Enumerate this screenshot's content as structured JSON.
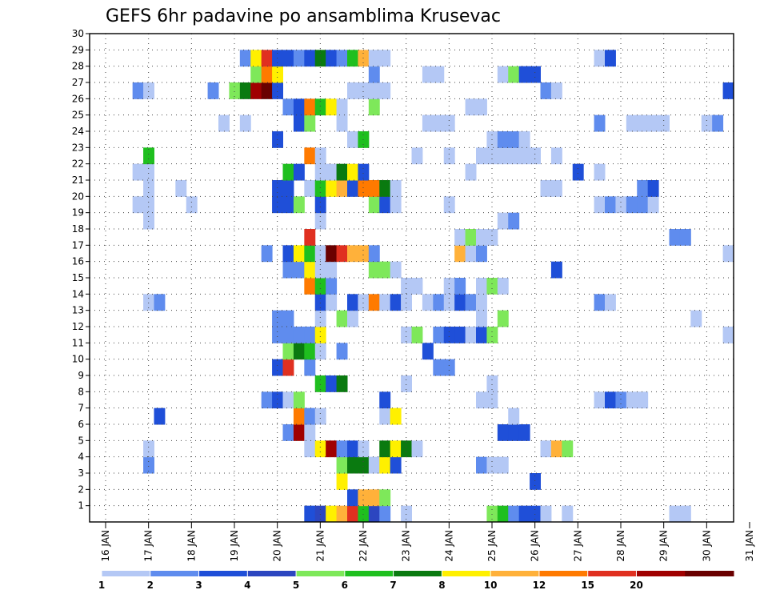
{
  "chart_data": {
    "type": "heatmap",
    "title": "GEFS 6hr padavine po ansamblima Krusevac",
    "x_tick_labels": [
      "16 JAN",
      "17 JAN",
      "18 JAN",
      "19 JAN",
      "20 JAN",
      "21 JAN",
      "22 JAN",
      "23 JAN",
      "24 JAN",
      "25 JAN",
      "26 JAN",
      "27 JAN",
      "28 JAN",
      "29 JAN",
      "30 JAN",
      "31 JAN"
    ],
    "y_tick_labels": [
      "1",
      "2",
      "3",
      "4",
      "5",
      "6",
      "7",
      "8",
      "9",
      "10",
      "11",
      "12",
      "13",
      "14",
      "15",
      "16",
      "17",
      "18",
      "19",
      "20",
      "21",
      "22",
      "23",
      "24",
      "25",
      "26",
      "27",
      "28",
      "29",
      "30"
    ],
    "x_range_6h_steps": [
      0,
      60
    ],
    "y_range_members": [
      0,
      30
    ],
    "grid": true,
    "legend": {
      "position": "bottom",
      "labels": [
        "1",
        "2",
        "3",
        "4",
        "5",
        "6",
        "7",
        "8",
        "10",
        "12",
        "15",
        "20"
      ],
      "colors": [
        "#b4c8f5",
        "#5f8cee",
        "#1f4fd8",
        "#2c46c0",
        "#7ee85a",
        "#1fbf1f",
        "#0a7a10",
        "#fff000",
        "#ffb13a",
        "#ff7a00",
        "#e03020",
        "#a00000",
        "#6a0000"
      ]
    },
    "cells": [
      [
        20,
        1,
        3
      ],
      [
        21,
        1,
        4
      ],
      [
        22,
        1,
        8
      ],
      [
        23,
        1,
        9
      ],
      [
        24,
        1,
        11
      ],
      [
        25,
        1,
        6
      ],
      [
        26,
        1,
        4
      ],
      [
        27,
        1,
        2
      ],
      [
        29,
        1,
        1
      ],
      [
        37,
        1,
        5
      ],
      [
        38,
        1,
        6
      ],
      [
        39,
        1,
        2
      ],
      [
        40,
        1,
        3
      ],
      [
        41,
        1,
        3
      ],
      [
        42,
        1,
        1
      ],
      [
        44,
        1,
        1
      ],
      [
        54,
        1,
        1
      ],
      [
        55,
        1,
        1
      ],
      [
        24,
        2,
        3
      ],
      [
        25,
        2,
        9
      ],
      [
        26,
        2,
        9
      ],
      [
        27,
        2,
        5
      ],
      [
        23,
        3,
        8
      ],
      [
        41,
        3,
        3
      ],
      [
        5,
        4,
        2
      ],
      [
        23,
        4,
        5
      ],
      [
        24,
        4,
        7
      ],
      [
        25,
        4,
        7
      ],
      [
        26,
        4,
        1
      ],
      [
        27,
        4,
        8
      ],
      [
        28,
        4,
        3
      ],
      [
        36,
        4,
        2
      ],
      [
        37,
        4,
        1
      ],
      [
        38,
        4,
        1
      ],
      [
        5,
        5,
        1
      ],
      [
        20,
        5,
        1
      ],
      [
        21,
        5,
        8
      ],
      [
        22,
        5,
        12
      ],
      [
        23,
        5,
        2
      ],
      [
        24,
        5,
        3
      ],
      [
        25,
        5,
        1
      ],
      [
        27,
        5,
        7
      ],
      [
        28,
        5,
        8
      ],
      [
        29,
        5,
        7
      ],
      [
        30,
        5,
        1
      ],
      [
        42,
        5,
        1
      ],
      [
        43,
        5,
        9
      ],
      [
        44,
        5,
        5
      ],
      [
        18,
        6,
        2
      ],
      [
        19,
        6,
        12
      ],
      [
        20,
        6,
        1
      ],
      [
        38,
        6,
        3
      ],
      [
        39,
        6,
        3
      ],
      [
        40,
        6,
        3
      ],
      [
        6,
        7,
        3
      ],
      [
        19,
        7,
        10
      ],
      [
        20,
        7,
        2
      ],
      [
        21,
        7,
        1
      ],
      [
        27,
        7,
        1
      ],
      [
        28,
        7,
        8
      ],
      [
        39,
        7,
        1
      ],
      [
        16,
        8,
        2
      ],
      [
        17,
        8,
        3
      ],
      [
        18,
        8,
        1
      ],
      [
        19,
        8,
        5
      ],
      [
        27,
        8,
        3
      ],
      [
        36,
        8,
        1
      ],
      [
        37,
        8,
        1
      ],
      [
        47,
        8,
        1
      ],
      [
        48,
        8,
        3
      ],
      [
        49,
        8,
        2
      ],
      [
        50,
        8,
        1
      ],
      [
        51,
        8,
        1
      ],
      [
        21,
        9,
        6
      ],
      [
        22,
        9,
        3
      ],
      [
        23,
        9,
        7
      ],
      [
        29,
        9,
        1
      ],
      [
        37,
        9,
        1
      ],
      [
        17,
        10,
        3
      ],
      [
        18,
        10,
        11
      ],
      [
        20,
        10,
        2
      ],
      [
        32,
        10,
        2
      ],
      [
        33,
        10,
        2
      ],
      [
        18,
        11,
        5
      ],
      [
        19,
        11,
        7
      ],
      [
        20,
        11,
        6
      ],
      [
        21,
        11,
        1
      ],
      [
        23,
        11,
        2
      ],
      [
        31,
        11,
        3
      ],
      [
        17,
        12,
        2
      ],
      [
        18,
        12,
        2
      ],
      [
        19,
        12,
        2
      ],
      [
        20,
        12,
        2
      ],
      [
        21,
        12,
        8
      ],
      [
        29,
        12,
        1
      ],
      [
        30,
        12,
        5
      ],
      [
        32,
        12,
        2
      ],
      [
        33,
        12,
        3
      ],
      [
        34,
        12,
        3
      ],
      [
        35,
        12,
        1
      ],
      [
        36,
        12,
        3
      ],
      [
        37,
        12,
        5
      ],
      [
        59,
        12,
        1
      ],
      [
        17,
        13,
        2
      ],
      [
        18,
        13,
        2
      ],
      [
        21,
        13,
        1
      ],
      [
        23,
        13,
        5
      ],
      [
        24,
        13,
        1
      ],
      [
        36,
        13,
        1
      ],
      [
        38,
        13,
        5
      ],
      [
        56,
        13,
        1
      ],
      [
        5,
        14,
        1
      ],
      [
        6,
        14,
        2
      ],
      [
        21,
        14,
        3
      ],
      [
        22,
        14,
        1
      ],
      [
        24,
        14,
        3
      ],
      [
        25,
        14,
        1
      ],
      [
        26,
        14,
        10
      ],
      [
        27,
        14,
        1
      ],
      [
        28,
        14,
        3
      ],
      [
        29,
        14,
        1
      ],
      [
        31,
        14,
        1
      ],
      [
        32,
        14,
        2
      ],
      [
        33,
        14,
        1
      ],
      [
        34,
        14,
        3
      ],
      [
        35,
        14,
        2
      ],
      [
        36,
        14,
        1
      ],
      [
        47,
        14,
        2
      ],
      [
        48,
        14,
        1
      ],
      [
        20,
        15,
        10
      ],
      [
        21,
        15,
        6
      ],
      [
        22,
        15,
        2
      ],
      [
        29,
        15,
        1
      ],
      [
        30,
        15,
        1
      ],
      [
        33,
        15,
        1
      ],
      [
        34,
        15,
        2
      ],
      [
        36,
        15,
        1
      ],
      [
        37,
        15,
        5
      ],
      [
        38,
        15,
        1
      ],
      [
        18,
        16,
        2
      ],
      [
        19,
        16,
        2
      ],
      [
        20,
        16,
        8
      ],
      [
        21,
        16,
        1
      ],
      [
        22,
        16,
        1
      ],
      [
        26,
        16,
        5
      ],
      [
        27,
        16,
        5
      ],
      [
        28,
        16,
        1
      ],
      [
        43,
        16,
        3
      ],
      [
        16,
        17,
        2
      ],
      [
        18,
        17,
        3
      ],
      [
        19,
        17,
        8
      ],
      [
        20,
        17,
        6
      ],
      [
        21,
        17,
        1
      ],
      [
        22,
        17,
        13
      ],
      [
        23,
        17,
        11
      ],
      [
        24,
        17,
        9
      ],
      [
        25,
        17,
        9
      ],
      [
        26,
        17,
        2
      ],
      [
        34,
        17,
        9
      ],
      [
        35,
        17,
        1
      ],
      [
        36,
        17,
        2
      ],
      [
        59,
        17,
        1
      ],
      [
        20,
        18,
        11
      ],
      [
        34,
        18,
        1
      ],
      [
        35,
        18,
        5
      ],
      [
        36,
        18,
        1
      ],
      [
        37,
        18,
        1
      ],
      [
        54,
        18,
        2
      ],
      [
        55,
        18,
        2
      ],
      [
        5,
        19,
        1
      ],
      [
        21,
        19,
        1
      ],
      [
        38,
        19,
        1
      ],
      [
        39,
        19,
        2
      ],
      [
        4,
        20,
        1
      ],
      [
        5,
        20,
        1
      ],
      [
        9,
        20,
        1
      ],
      [
        17,
        20,
        3
      ],
      [
        18,
        20,
        3
      ],
      [
        19,
        20,
        5
      ],
      [
        21,
        20,
        3
      ],
      [
        26,
        20,
        5
      ],
      [
        27,
        20,
        3
      ],
      [
        28,
        20,
        1
      ],
      [
        33,
        20,
        1
      ],
      [
        47,
        20,
        1
      ],
      [
        48,
        20,
        2
      ],
      [
        49,
        20,
        1
      ],
      [
        50,
        20,
        2
      ],
      [
        51,
        20,
        2
      ],
      [
        52,
        20,
        1
      ],
      [
        5,
        21,
        1
      ],
      [
        8,
        21,
        1
      ],
      [
        17,
        21,
        3
      ],
      [
        18,
        21,
        3
      ],
      [
        20,
        21,
        1
      ],
      [
        21,
        21,
        6
      ],
      [
        22,
        21,
        8
      ],
      [
        23,
        21,
        9
      ],
      [
        24,
        21,
        3
      ],
      [
        25,
        21,
        10
      ],
      [
        26,
        21,
        10
      ],
      [
        27,
        21,
        7
      ],
      [
        28,
        21,
        1
      ],
      [
        42,
        21,
        1
      ],
      [
        43,
        21,
        1
      ],
      [
        51,
        21,
        2
      ],
      [
        52,
        21,
        3
      ],
      [
        4,
        22,
        1
      ],
      [
        5,
        22,
        1
      ],
      [
        18,
        22,
        6
      ],
      [
        19,
        22,
        3
      ],
      [
        21,
        22,
        1
      ],
      [
        22,
        22,
        1
      ],
      [
        23,
        22,
        7
      ],
      [
        24,
        22,
        8
      ],
      [
        25,
        22,
        3
      ],
      [
        35,
        22,
        1
      ],
      [
        45,
        22,
        3
      ],
      [
        47,
        22,
        1
      ],
      [
        5,
        23,
        6
      ],
      [
        20,
        23,
        10
      ],
      [
        21,
        23,
        1
      ],
      [
        30,
        23,
        1
      ],
      [
        33,
        23,
        1
      ],
      [
        36,
        23,
        1
      ],
      [
        37,
        23,
        1
      ],
      [
        38,
        23,
        1
      ],
      [
        39,
        23,
        1
      ],
      [
        40,
        23,
        1
      ],
      [
        41,
        23,
        1
      ],
      [
        43,
        23,
        1
      ],
      [
        17,
        24,
        3
      ],
      [
        24,
        24,
        1
      ],
      [
        25,
        24,
        6
      ],
      [
        37,
        24,
        1
      ],
      [
        38,
        24,
        2
      ],
      [
        39,
        24,
        2
      ],
      [
        40,
        24,
        1
      ],
      [
        12,
        25,
        1
      ],
      [
        14,
        25,
        1
      ],
      [
        19,
        25,
        3
      ],
      [
        20,
        25,
        5
      ],
      [
        23,
        25,
        1
      ],
      [
        31,
        25,
        1
      ],
      [
        32,
        25,
        1
      ],
      [
        33,
        25,
        1
      ],
      [
        47,
        25,
        2
      ],
      [
        50,
        25,
        1
      ],
      [
        51,
        25,
        1
      ],
      [
        52,
        25,
        1
      ],
      [
        53,
        25,
        1
      ],
      [
        57,
        25,
        1
      ],
      [
        58,
        25,
        2
      ],
      [
        18,
        26,
        2
      ],
      [
        19,
        26,
        3
      ],
      [
        20,
        26,
        10
      ],
      [
        21,
        26,
        6
      ],
      [
        22,
        26,
        8
      ],
      [
        23,
        26,
        1
      ],
      [
        26,
        26,
        5
      ],
      [
        35,
        26,
        1
      ],
      [
        36,
        26,
        1
      ],
      [
        4,
        27,
        2
      ],
      [
        5,
        27,
        1
      ],
      [
        11,
        27,
        2
      ],
      [
        13,
        27,
        5
      ],
      [
        14,
        27,
        7
      ],
      [
        15,
        27,
        12
      ],
      [
        16,
        27,
        13
      ],
      [
        17,
        27,
        3
      ],
      [
        24,
        27,
        1
      ],
      [
        25,
        27,
        1
      ],
      [
        26,
        27,
        1
      ],
      [
        27,
        27,
        1
      ],
      [
        42,
        27,
        2
      ],
      [
        43,
        27,
        1
      ],
      [
        59,
        27,
        3
      ],
      [
        15,
        28,
        5
      ],
      [
        16,
        28,
        10
      ],
      [
        17,
        28,
        8
      ],
      [
        26,
        28,
        2
      ],
      [
        31,
        28,
        1
      ],
      [
        32,
        28,
        1
      ],
      [
        38,
        28,
        1
      ],
      [
        39,
        28,
        5
      ],
      [
        40,
        28,
        3
      ],
      [
        41,
        28,
        3
      ],
      [
        14,
        29,
        2
      ],
      [
        15,
        29,
        8
      ],
      [
        16,
        29,
        11
      ],
      [
        17,
        29,
        3
      ],
      [
        18,
        29,
        3
      ],
      [
        19,
        29,
        2
      ],
      [
        20,
        29,
        3
      ],
      [
        21,
        29,
        7
      ],
      [
        22,
        29,
        3
      ],
      [
        23,
        29,
        2
      ],
      [
        24,
        29,
        6
      ],
      [
        25,
        29,
        9
      ],
      [
        26,
        29,
        1
      ],
      [
        27,
        29,
        1
      ],
      [
        47,
        29,
        1
      ],
      [
        48,
        29,
        3
      ]
    ]
  }
}
